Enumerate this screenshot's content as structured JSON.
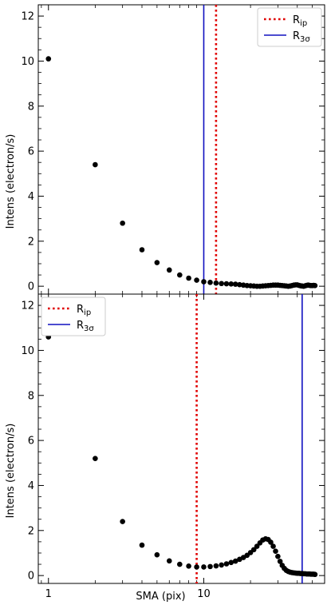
{
  "chart_data": [
    {
      "type": "scatter",
      "xscale": "log",
      "xlim": [
        0.86,
        60
      ],
      "ylim": [
        -0.35,
        12.5
      ],
      "yticks": [
        0,
        2,
        4,
        6,
        8,
        10,
        12
      ],
      "ylabel": "Intens (electron/s)",
      "xlabel": "",
      "vlines": [
        {
          "name": "R_ip",
          "x": 12.0,
          "color": "#e00000",
          "style": "dotted"
        },
        {
          "name": "R_3σ",
          "x": 10.0,
          "color": "#1010c0",
          "style": "solid"
        }
      ],
      "legend": {
        "position": "top-right",
        "entries": [
          {
            "label": "R",
            "sub": "ip",
            "color": "#e00000",
            "style": "dotted"
          },
          {
            "label": "R",
            "sub": "3σ",
            "color": "#1010c0",
            "style": "solid"
          }
        ]
      },
      "series": [
        {
          "x": [
            1,
            2,
            3,
            4,
            5,
            6,
            7,
            8,
            9,
            10,
            11,
            12,
            13,
            14,
            15,
            16,
            17,
            18,
            19,
            20,
            21,
            22,
            23,
            24,
            25,
            26,
            27,
            28,
            29,
            30,
            31,
            32,
            33,
            34,
            35,
            36,
            37,
            38,
            39,
            40,
            41,
            42,
            43,
            44,
            45,
            46,
            47,
            48,
            49,
            50,
            51,
            52
          ],
          "y": [
            10.1,
            5.4,
            2.8,
            1.62,
            1.05,
            0.72,
            0.5,
            0.36,
            0.27,
            0.2,
            0.17,
            0.14,
            0.12,
            0.11,
            0.1,
            0.09,
            0.07,
            0.05,
            0.03,
            0.02,
            0.01,
            0.0,
            0.0,
            0.01,
            0.02,
            0.03,
            0.04,
            0.05,
            0.05,
            0.05,
            0.04,
            0.03,
            0.02,
            0.01,
            0.0,
            0.01,
            0.03,
            0.05,
            0.06,
            0.06,
            0.04,
            0.02,
            0.01,
            0.0,
            0.02,
            0.04,
            0.05,
            0.04,
            0.03,
            0.03,
            0.04,
            0.03
          ]
        }
      ]
    },
    {
      "type": "scatter",
      "xscale": "log",
      "xlim": [
        0.86,
        60
      ],
      "ylim": [
        -0.35,
        12.5
      ],
      "yticks": [
        0,
        2,
        4,
        6,
        8,
        10,
        12
      ],
      "xticks": [
        1,
        10
      ],
      "ylabel": "Intens (electron/s)",
      "xlabel": "SMA (pix)",
      "vlines": [
        {
          "name": "R_ip",
          "x": 9.0,
          "color": "#e00000",
          "style": "dotted"
        },
        {
          "name": "R_3σ",
          "x": 43.0,
          "color": "#1010c0",
          "style": "solid"
        }
      ],
      "legend": {
        "position": "top-left",
        "entries": [
          {
            "label": "R",
            "sub": "ip",
            "color": "#e00000",
            "style": "dotted"
          },
          {
            "label": "R",
            "sub": "3σ",
            "color": "#1010c0",
            "style": "solid"
          }
        ]
      },
      "series": [
        {
          "x": [
            1,
            2,
            3,
            4,
            5,
            6,
            7,
            8,
            9,
            10,
            11,
            12,
            13,
            14,
            15,
            16,
            17,
            18,
            19,
            20,
            21,
            22,
            23,
            24,
            25,
            26,
            27,
            28,
            29,
            30,
            31,
            32,
            33,
            34,
            35,
            36,
            37,
            38,
            39,
            40,
            41,
            42,
            43,
            44,
            45,
            46,
            47,
            48,
            49,
            50,
            51,
            52
          ],
          "y": [
            10.6,
            5.2,
            2.4,
            1.35,
            0.92,
            0.65,
            0.5,
            0.42,
            0.38,
            0.38,
            0.4,
            0.43,
            0.47,
            0.52,
            0.58,
            0.64,
            0.72,
            0.8,
            0.9,
            1.02,
            1.15,
            1.3,
            1.45,
            1.58,
            1.63,
            1.6,
            1.48,
            1.3,
            1.08,
            0.85,
            0.63,
            0.45,
            0.32,
            0.23,
            0.18,
            0.15,
            0.13,
            0.12,
            0.11,
            0.1,
            0.1,
            0.09,
            0.09,
            0.08,
            0.08,
            0.07,
            0.07,
            0.07,
            0.06,
            0.06,
            0.06,
            0.05
          ]
        }
      ]
    }
  ]
}
